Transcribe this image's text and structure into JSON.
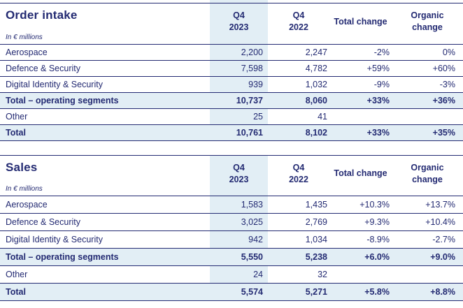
{
  "colors": {
    "navy": "#232a72",
    "light_blue": "#e2eef5"
  },
  "tables": [
    {
      "title": "Order intake",
      "subtitle": "In € millions",
      "headers": [
        {
          "line1": "Q4",
          "line2": "2023"
        },
        {
          "line1": "Q4",
          "line2": "2022"
        },
        {
          "line1": "Total change"
        },
        {
          "line1": "Organic",
          "line2": "change"
        }
      ],
      "rows": [
        {
          "label": "Aerospace",
          "q4_2023": "2,200",
          "q4_2022": "2,247",
          "total_change": "-2%",
          "organic_change": "0%"
        },
        {
          "label": "Defence & Security",
          "q4_2023": "7,598",
          "q4_2022": "4,782",
          "total_change": "+59%",
          "organic_change": "+60%"
        },
        {
          "label": "Digital Identity & Security",
          "q4_2023": "939",
          "q4_2022": "1,032",
          "total_change": "-9%",
          "organic_change": "-3%"
        },
        {
          "label": "Total – operating segments",
          "q4_2023": "10,737",
          "q4_2022": "8,060",
          "total_change": "+33%",
          "organic_change": "+36%"
        },
        {
          "label": "Other",
          "q4_2023": "25",
          "q4_2022": "41",
          "total_change": "",
          "organic_change": ""
        },
        {
          "label": "Total",
          "q4_2023": "10,761",
          "q4_2022": "8,102",
          "total_change": "+33%",
          "organic_change": "+35%"
        }
      ]
    },
    {
      "title": "Sales",
      "subtitle": "In € millions",
      "headers": [
        {
          "line1": "Q4",
          "line2": "2023"
        },
        {
          "line1": "Q4",
          "line2": "2022"
        },
        {
          "line1": "Total change"
        },
        {
          "line1": "Organic",
          "line2": "change"
        }
      ],
      "rows": [
        {
          "label": "Aerospace",
          "q4_2023": "1,583",
          "q4_2022": "1,435",
          "total_change": "+10.3%",
          "organic_change": "+13.7%"
        },
        {
          "label": "Defence & Security",
          "q4_2023": "3,025",
          "q4_2022": "2,769",
          "total_change": "+9.3%",
          "organic_change": "+10.4%"
        },
        {
          "label": "Digital Identity & Security",
          "q4_2023": "942",
          "q4_2022": "1,034",
          "total_change": "-8.9%",
          "organic_change": "-2.7%"
        },
        {
          "label": "Total – operating segments",
          "q4_2023": "5,550",
          "q4_2022": "5,238",
          "total_change": "+6.0%",
          "organic_change": "+9.0%"
        },
        {
          "label": "Other",
          "q4_2023": "24",
          "q4_2022": "32",
          "total_change": "",
          "organic_change": ""
        },
        {
          "label": "Total",
          "q4_2023": "5,574",
          "q4_2022": "5,271",
          "total_change": "+5.8%",
          "organic_change": "+8.8%"
        }
      ]
    }
  ]
}
